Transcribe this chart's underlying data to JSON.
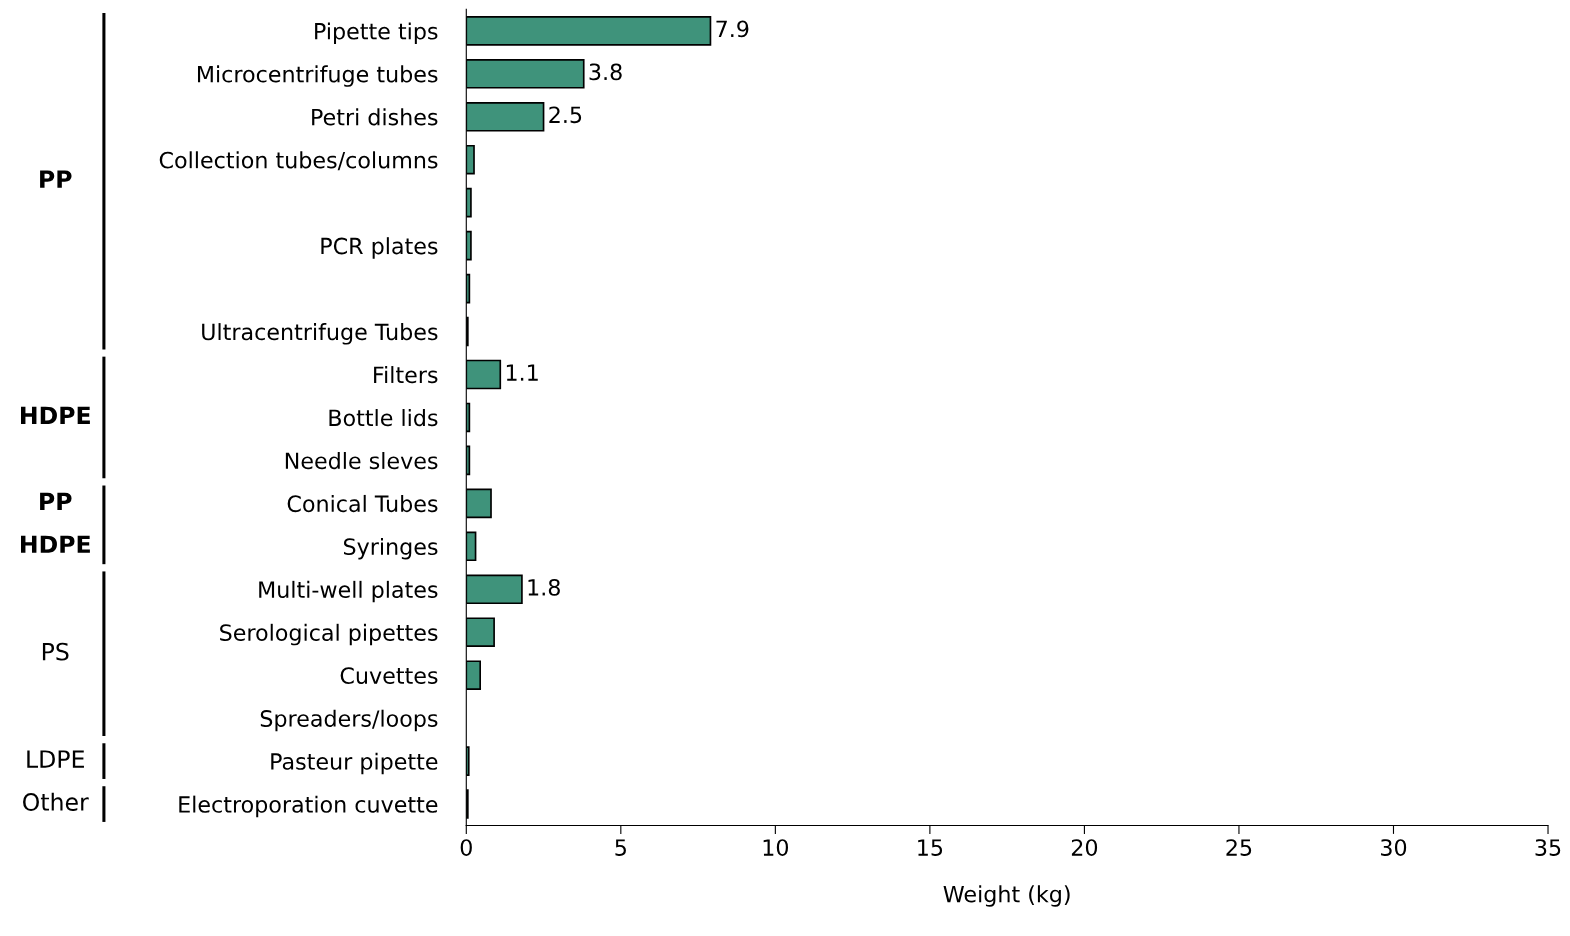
{
  "chart_data": {
    "type": "bar",
    "orientation": "horizontal",
    "xlabel": "Weight (kg)",
    "categories": [
      "Pipette tips",
      "Microcentrifuge tubes",
      "Petri dishes",
      "Collection tubes/columns",
      null,
      "PCR plates",
      null,
      "Ultracentrifuge Tubes",
      "Filters",
      "Bottle lids",
      "Needle sleves",
      "Conical Tubes",
      "Syringes",
      "Multi-well plates",
      "Serological pipettes",
      "Cuvettes",
      "Spreaders/loops",
      "Pasteur pipette",
      "Electroporation cuvette"
    ],
    "values": [
      7.9,
      3.8,
      2.5,
      0.25,
      0.15,
      0.15,
      0.1,
      0.05,
      1.1,
      0.1,
      0.1,
      0.8,
      0.3,
      1.8,
      0.9,
      0.45,
      0,
      0.08,
      0.05
    ],
    "value_labels": [
      "7.9",
      "3.8",
      "2.5",
      null,
      null,
      null,
      null,
      null,
      "1.1",
      null,
      null,
      null,
      null,
      "1.8",
      null,
      null,
      null,
      null,
      null
    ],
    "color": "#3f937b",
    "xlim": [
      0,
      35
    ],
    "xticks": [
      0,
      5,
      10,
      15,
      20,
      25,
      30,
      35
    ],
    "grid": false,
    "annotations": [
      "PP",
      "HDPE",
      "PP",
      "HDPE",
      "PS",
      "LDPE",
      "Other"
    ]
  }
}
